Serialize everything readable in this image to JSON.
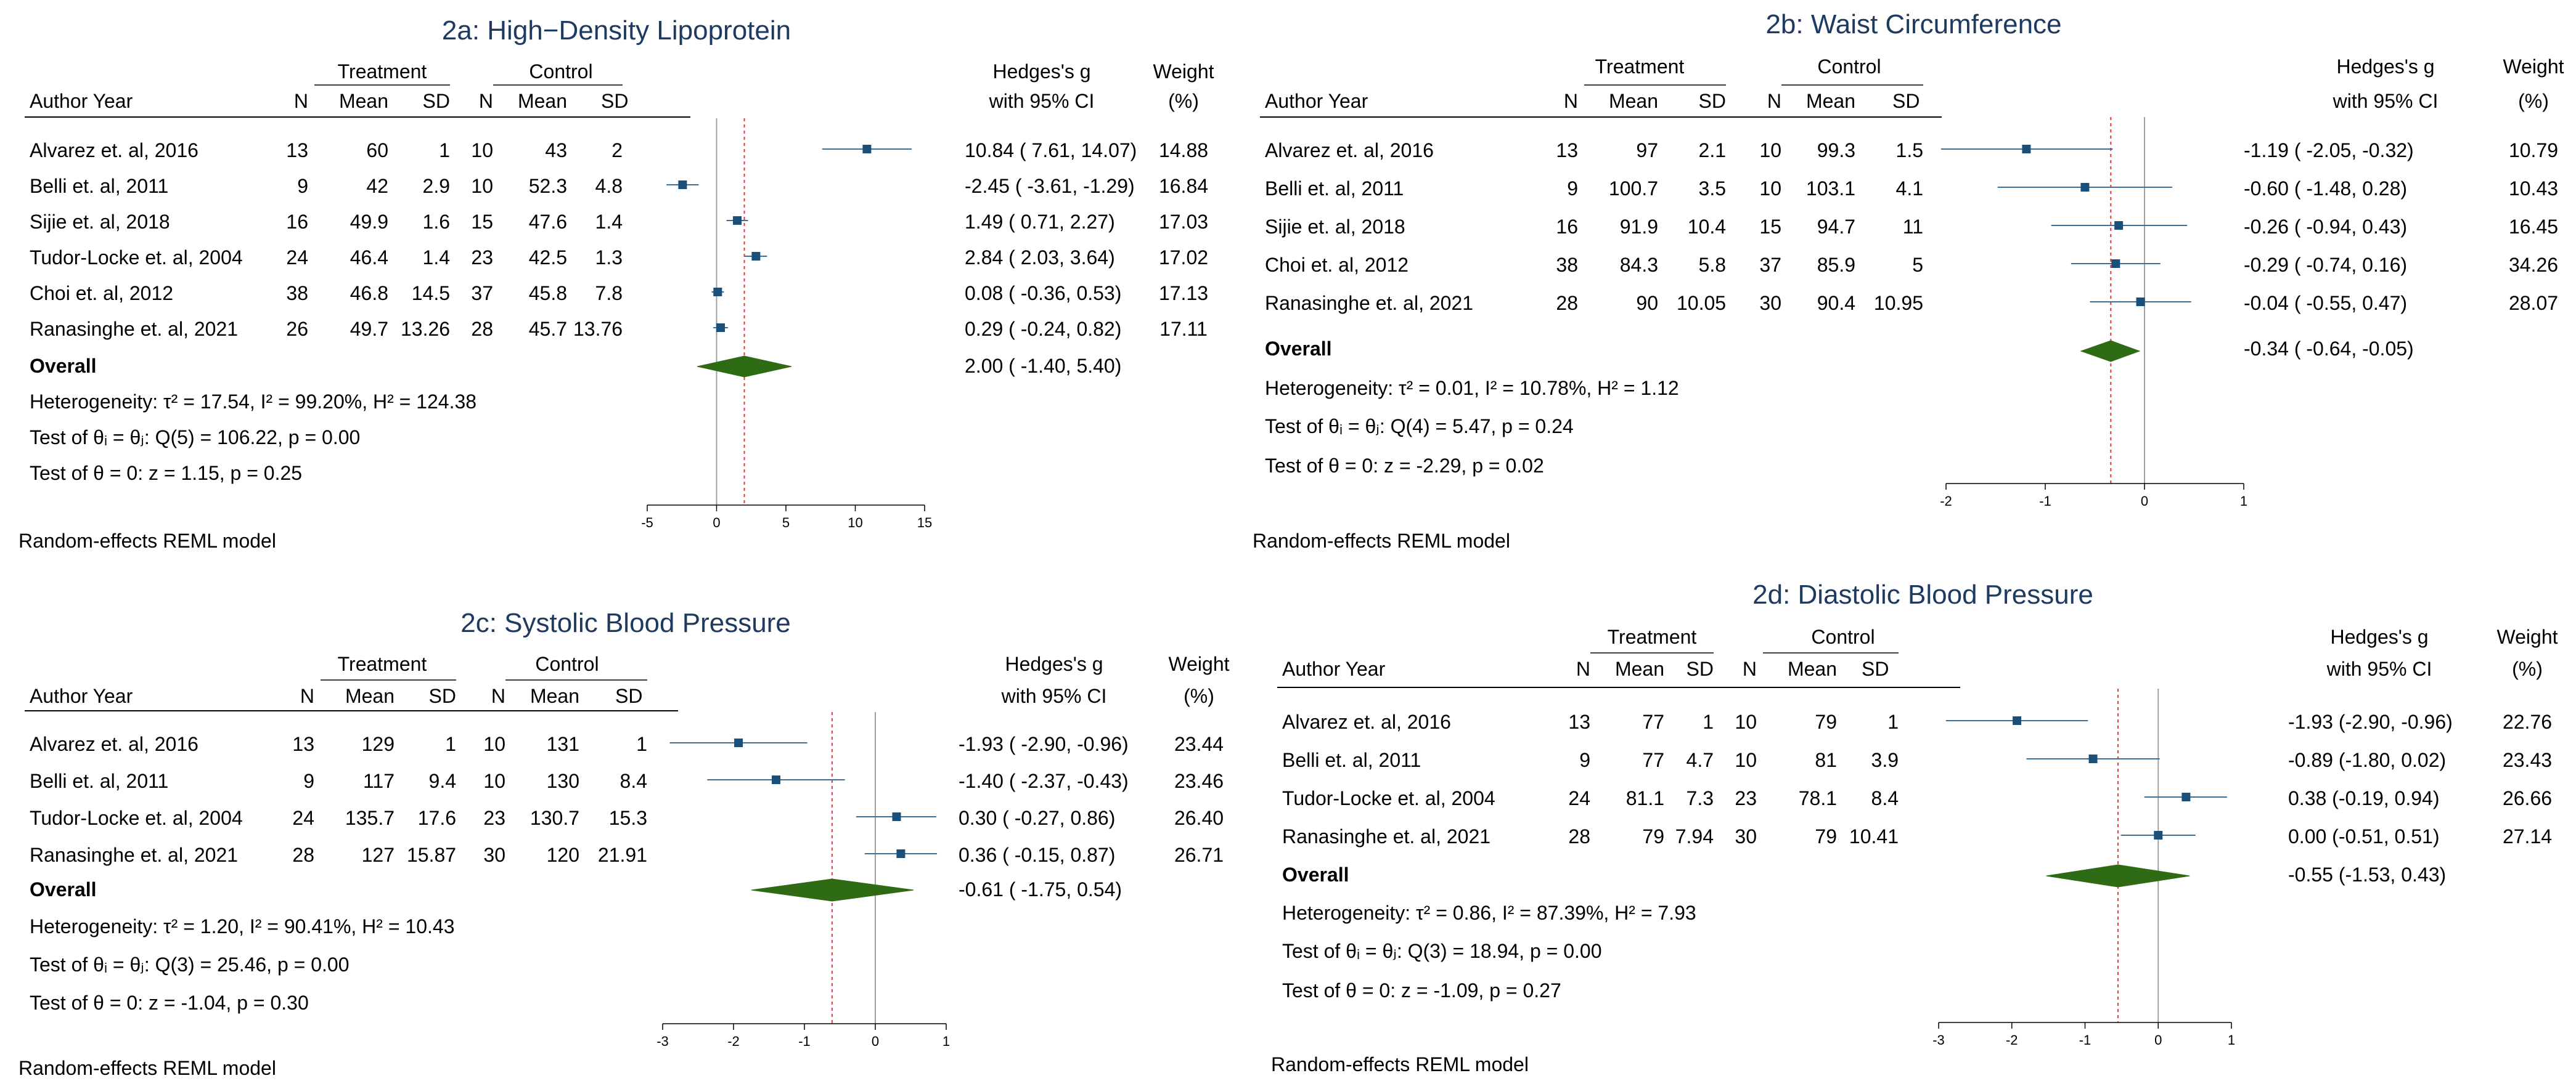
{
  "colors": {
    "title": "#1f3a60",
    "marker": "#1a4f7a",
    "ci_line": "#3b6e99",
    "diamond": "#2e6b14",
    "overall_line": "#d0404a",
    "null_line": "#a0a0a0",
    "rule": "#000000"
  },
  "common": {
    "author_year": "Author  Year",
    "treatment": "Treatment",
    "control": "Control",
    "n": "N",
    "mean": "Mean",
    "sd": "SD",
    "hedges": "Hedges's g",
    "ci": "with 95% CI",
    "weight": "Weight",
    "pct": "(%)",
    "overall": "Overall",
    "model": "Random-effects REML model"
  },
  "chart_data": [
    {
      "id": "2a",
      "type": "forest",
      "title": "2a: High−Density Lipoprotein",
      "xlim": [
        -5,
        15
      ],
      "xticks": [
        -5,
        0,
        5,
        10,
        15
      ],
      "studies": [
        {
          "author": "Alvarez et. al, 2016",
          "tn": "13",
          "tmean": "60",
          "tsd": "1",
          "cn": "10",
          "cmean": "43",
          "csd": "2",
          "g": 10.84,
          "lo": 7.61,
          "hi": 14.07,
          "est": "10.84 (  7.61,  14.07)",
          "weight": "14.88"
        },
        {
          "author": "Belli et. al, 2011",
          "tn": "9",
          "tmean": "42",
          "tsd": "2.9",
          "cn": "10",
          "cmean": "52.3",
          "csd": "4.8",
          "g": -2.45,
          "lo": -3.61,
          "hi": -1.29,
          "est": "-2.45 ( -3.61,  -1.29)",
          "weight": "16.84"
        },
        {
          "author": "Sijie et. al, 2018",
          "tn": "16",
          "tmean": "49.9",
          "tsd": "1.6",
          "cn": "15",
          "cmean": "47.6",
          "csd": "1.4",
          "g": 1.49,
          "lo": 0.71,
          "hi": 2.27,
          "est": "1.49 (  0.71,   2.27)",
          "weight": "17.03"
        },
        {
          "author": "Tudor-Locke et. al, 2004",
          "tn": "24",
          "tmean": "46.4",
          "tsd": "1.4",
          "cn": "23",
          "cmean": "42.5",
          "csd": "1.3",
          "g": 2.84,
          "lo": 2.03,
          "hi": 3.64,
          "est": "2.84 (  2.03,   3.64)",
          "weight": "17.02"
        },
        {
          "author": "Choi et. al, 2012",
          "tn": "38",
          "tmean": "46.8",
          "tsd": "14.5",
          "cn": "37",
          "cmean": "45.8",
          "csd": "7.8",
          "g": 0.08,
          "lo": -0.36,
          "hi": 0.53,
          "est": "0.08 ( -0.36,   0.53)",
          "weight": "17.13"
        },
        {
          "author": "Ranasinghe et. al, 2021",
          "tn": "26",
          "tmean": "49.7",
          "tsd": "13.26",
          "cn": "28",
          "cmean": "45.7",
          "csd": "13.76",
          "g": 0.29,
          "lo": -0.24,
          "hi": 0.82,
          "est": "0.29 ( -0.24,   0.82)",
          "weight": "17.11"
        }
      ],
      "overall": {
        "g": 2.0,
        "lo": -1.4,
        "hi": 5.4,
        "est": "2.00 ( -1.40,   5.40)"
      },
      "heterogeneity": "Heterogeneity: τ² = 17.54, I² = 99.20%, H² = 124.38",
      "test_theta_i": "Test of θᵢ = θⱼ: Q(5) = 106.22, p = 0.00",
      "test_theta": "Test of θ = 0: z = 1.15, p = 0.25"
    },
    {
      "id": "2b",
      "type": "forest",
      "title": "2b: Waist Circumference",
      "xlim": [
        -2,
        1
      ],
      "xticks": [
        -2,
        -1,
        0,
        1
      ],
      "studies": [
        {
          "author": "Alvarez et. al, 2016",
          "tn": "13",
          "tmean": "97",
          "tsd": "2.1",
          "cn": "10",
          "cmean": "99.3",
          "csd": "1.5",
          "g": -1.19,
          "lo": -2.05,
          "hi": -0.32,
          "est": "-1.19 ( -2.05, -0.32)",
          "weight": "10.79"
        },
        {
          "author": "Belli et. al, 2011",
          "tn": "9",
          "tmean": "100.7",
          "tsd": "3.5",
          "cn": "10",
          "cmean": "103.1",
          "csd": "4.1",
          "g": -0.6,
          "lo": -1.48,
          "hi": 0.28,
          "est": "-0.60 ( -1.48,  0.28)",
          "weight": "10.43"
        },
        {
          "author": "Sijie et. al, 2018",
          "tn": "16",
          "tmean": "91.9",
          "tsd": "10.4",
          "cn": "15",
          "cmean": "94.7",
          "csd": "11",
          "g": -0.26,
          "lo": -0.94,
          "hi": 0.43,
          "est": "-0.26 ( -0.94,  0.43)",
          "weight": "16.45"
        },
        {
          "author": "Choi et. al, 2012",
          "tn": "38",
          "tmean": "84.3",
          "tsd": "5.8",
          "cn": "37",
          "cmean": "85.9",
          "csd": "5",
          "g": -0.29,
          "lo": -0.74,
          "hi": 0.16,
          "est": "-0.29 ( -0.74,  0.16)",
          "weight": "34.26"
        },
        {
          "author": "Ranasinghe et. al, 2021",
          "tn": "28",
          "tmean": "90",
          "tsd": "10.05",
          "cn": "30",
          "cmean": "90.4",
          "csd": "10.95",
          "g": -0.04,
          "lo": -0.55,
          "hi": 0.47,
          "est": "-0.04 ( -0.55,  0.47)",
          "weight": "28.07"
        }
      ],
      "overall": {
        "g": -0.34,
        "lo": -0.64,
        "hi": -0.05,
        "est": "-0.34 ( -0.64, -0.05)"
      },
      "heterogeneity": "Heterogeneity: τ² = 0.01, I² = 10.78%, H² = 1.12",
      "test_theta_i": "Test of θᵢ = θⱼ: Q(4) = 5.47, p = 0.24",
      "test_theta": "Test of θ = 0: z = -2.29, p = 0.02"
    },
    {
      "id": "2c",
      "type": "forest",
      "title": "2c: Systolic Blood Pressure",
      "xlim": [
        -3,
        1
      ],
      "xticks": [
        -3,
        -2,
        -1,
        0,
        1
      ],
      "studies": [
        {
          "author": "Alvarez et. al, 2016",
          "tn": "13",
          "tmean": "129",
          "tsd": "1",
          "cn": "10",
          "cmean": "131",
          "csd": "1",
          "g": -1.93,
          "lo": -2.9,
          "hi": -0.96,
          "est": "-1.93 ( -2.90, -0.96)",
          "weight": "23.44"
        },
        {
          "author": "Belli et. al, 2011",
          "tn": "9",
          "tmean": "117",
          "tsd": "9.4",
          "cn": "10",
          "cmean": "130",
          "csd": "8.4",
          "g": -1.4,
          "lo": -2.37,
          "hi": -0.43,
          "est": "-1.40 ( -2.37, -0.43)",
          "weight": "23.46"
        },
        {
          "author": "Tudor-Locke et. al, 2004",
          "tn": "24",
          "tmean": "135.7",
          "tsd": "17.6",
          "cn": "23",
          "cmean": "130.7",
          "csd": "15.3",
          "g": 0.3,
          "lo": -0.27,
          "hi": 0.86,
          "est": "0.30 ( -0.27,  0.86)",
          "weight": "26.40"
        },
        {
          "author": "Ranasinghe et. al, 2021",
          "tn": "28",
          "tmean": "127",
          "tsd": "15.87",
          "cn": "30",
          "cmean": "120",
          "csd": "21.91",
          "g": 0.36,
          "lo": -0.15,
          "hi": 0.87,
          "est": "0.36 ( -0.15,  0.87)",
          "weight": "26.71"
        }
      ],
      "overall": {
        "g": -0.61,
        "lo": -1.75,
        "hi": 0.54,
        "est": "-0.61 ( -1.75,  0.54)"
      },
      "heterogeneity": "Heterogeneity: τ² = 1.20, I² = 90.41%, H² = 10.43",
      "test_theta_i": "Test of θᵢ = θⱼ: Q(3) = 25.46, p = 0.00",
      "test_theta": "Test of θ = 0: z = -1.04, p = 0.30"
    },
    {
      "id": "2d",
      "type": "forest",
      "title": "2d: Diastolic Blood Pressure",
      "xlim": [
        -3,
        1
      ],
      "xticks": [
        -3,
        -2,
        -1,
        0,
        1
      ],
      "studies": [
        {
          "author": "Alvarez et. al, 2016",
          "tn": "13",
          "tmean": "77",
          "tsd": "1",
          "cn": "10",
          "cmean": "79",
          "csd": "1",
          "g": -1.93,
          "lo": -2.9,
          "hi": -0.96,
          "est": "-1.93 (-2.90, -0.96)",
          "weight": "22.76"
        },
        {
          "author": "Belli et. al, 2011",
          "tn": "9",
          "tmean": "77",
          "tsd": "4.7",
          "cn": "10",
          "cmean": "81",
          "csd": "3.9",
          "g": -0.89,
          "lo": -1.8,
          "hi": 0.02,
          "est": "-0.89 (-1.80,  0.02)",
          "weight": "23.43"
        },
        {
          "author": "Tudor-Locke et. al, 2004",
          "tn": "24",
          "tmean": "81.1",
          "tsd": "7.3",
          "cn": "23",
          "cmean": "78.1",
          "csd": "8.4",
          "g": 0.38,
          "lo": -0.19,
          "hi": 0.94,
          "est": "0.38 (-0.19,  0.94)",
          "weight": "26.66"
        },
        {
          "author": "Ranasinghe et. al, 2021",
          "tn": "28",
          "tmean": "79",
          "tsd": "7.94",
          "cn": "30",
          "cmean": "79",
          "csd": "10.41",
          "g": 0.0,
          "lo": -0.51,
          "hi": 0.51,
          "est": "0.00 (-0.51,  0.51)",
          "weight": "27.14"
        }
      ],
      "overall": {
        "g": -0.55,
        "lo": -1.53,
        "hi": 0.43,
        "est": "-0.55 (-1.53,  0.43)"
      },
      "heterogeneity": "Heterogeneity: τ² = 0.86, I² = 87.39%, H² = 7.93",
      "test_theta_i": "Test of θᵢ = θⱼ: Q(3) = 18.94, p = 0.00",
      "test_theta": "Test of θ = 0: z = -1.09, p = 0.27"
    }
  ]
}
